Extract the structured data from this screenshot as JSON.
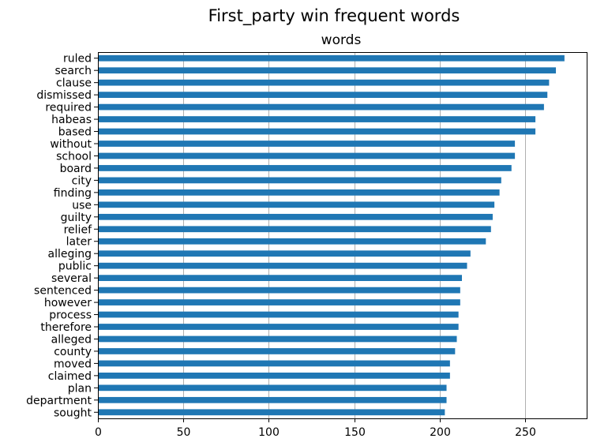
{
  "chart_data": {
    "type": "bar",
    "orientation": "horizontal",
    "title": "First_party win frequent words",
    "subtitle": "words",
    "xlabel": "",
    "ylabel": "",
    "xlim": [
      0,
      286
    ],
    "xticks": [
      0,
      50,
      100,
      150,
      200,
      250
    ],
    "grid": "x-axis vertical lines",
    "bar_color": "#1f77b4",
    "categories": [
      "ruled",
      "search",
      "clause",
      "dismissed",
      "required",
      "habeas",
      "based",
      "without",
      "school",
      "board",
      "city",
      "finding",
      "use",
      "guilty",
      "relief",
      "later",
      "alleging",
      "public",
      "several",
      "sentenced",
      "however",
      "process",
      "therefore",
      "alleged",
      "county",
      "moved",
      "claimed",
      "plan",
      "department",
      "sought"
    ],
    "values": [
      273,
      268,
      264,
      263,
      261,
      256,
      256,
      244,
      244,
      242,
      236,
      235,
      232,
      231,
      230,
      227,
      218,
      216,
      213,
      212,
      212,
      211,
      211,
      210,
      209,
      206,
      206,
      204,
      204,
      203
    ]
  }
}
